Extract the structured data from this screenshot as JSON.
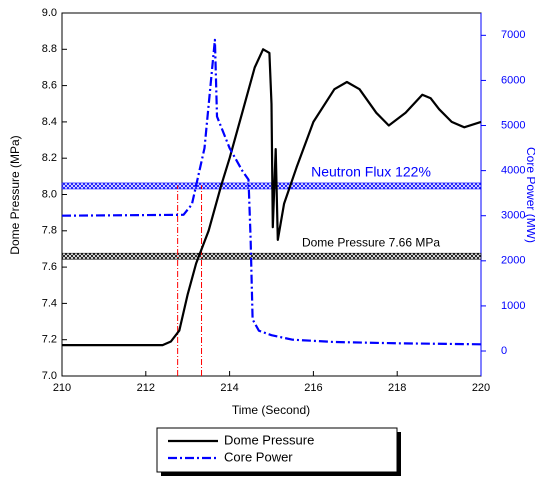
{
  "chart_data": {
    "type": "line",
    "x_label": "Time (Second)",
    "y_label": "Dome Pressure (MPa)",
    "y2_label": "Core Power (MW)",
    "xlim": [
      210,
      220
    ],
    "xticks": [
      210,
      212,
      214,
      216,
      218,
      220
    ],
    "ylim": [
      7,
      9
    ],
    "yticks": [
      {
        "value": 7,
        "label": "7.0"
      },
      7.2,
      7.4,
      7.6,
      7.8,
      {
        "value": 8,
        "label": "8.0"
      },
      8.2,
      8.4,
      8.6,
      8.8,
      {
        "value": 9,
        "label": "9.0"
      }
    ],
    "y2lim": [
      -554,
      7495
    ],
    "y2ticks": [
      0,
      1000,
      2000,
      3000,
      4000,
      5000,
      6000,
      7000
    ],
    "y2_color": "#0000ff",
    "series": [
      {
        "name": "Dome Pressure",
        "color": "#000000",
        "dash": "solid",
        "x": [
          210,
          212.4,
          212.6,
          212.8,
          213.0,
          213.2,
          213.5,
          213.8,
          214.0,
          214.3,
          214.6,
          214.8,
          214.95,
          215.0,
          215.03,
          215.1,
          215.15,
          215.3,
          215.6,
          216.0,
          216.5,
          216.8,
          217.1,
          217.5,
          217.8,
          218.2,
          218.6,
          218.8,
          219.0,
          219.3,
          219.6,
          220.0
        ],
        "values": [
          7.17,
          7.17,
          7.19,
          7.25,
          7.45,
          7.62,
          7.8,
          8.05,
          8.2,
          8.45,
          8.7,
          8.8,
          8.78,
          8.5,
          7.82,
          8.25,
          7.75,
          7.95,
          8.15,
          8.4,
          8.58,
          8.62,
          8.58,
          8.45,
          8.38,
          8.45,
          8.55,
          8.53,
          8.47,
          8.4,
          8.37,
          8.4
        ]
      },
      {
        "name": "Core Power",
        "color": "#0000ff",
        "dash": "dashdot",
        "axis": "y2",
        "x": [
          210,
          212.9,
          213.1,
          213.4,
          213.65,
          213.7,
          214.0,
          214.3,
          214.45,
          214.5,
          214.55,
          214.7,
          215.0,
          215.5,
          216.5,
          218.0,
          220.0
        ],
        "values": [
          3000,
          3020,
          3250,
          4500,
          6900,
          5200,
          4500,
          4000,
          3800,
          2500,
          700,
          450,
          350,
          250,
          200,
          170,
          150
        ]
      }
    ],
    "hlines": [
      {
        "label": "Neutron Flux 122%",
        "value": 3660,
        "axis": "y2",
        "color": "#0000ff"
      },
      {
        "label": "Dome Pressure 7.66 MPa",
        "value": 7.66,
        "color": "#000000"
      }
    ],
    "vlines": [
      {
        "x": 212.76,
        "top": 8.05,
        "color": "#ff0000"
      },
      {
        "x": 213.33,
        "top": 8.05,
        "color": "#ff0000"
      }
    ]
  }
}
